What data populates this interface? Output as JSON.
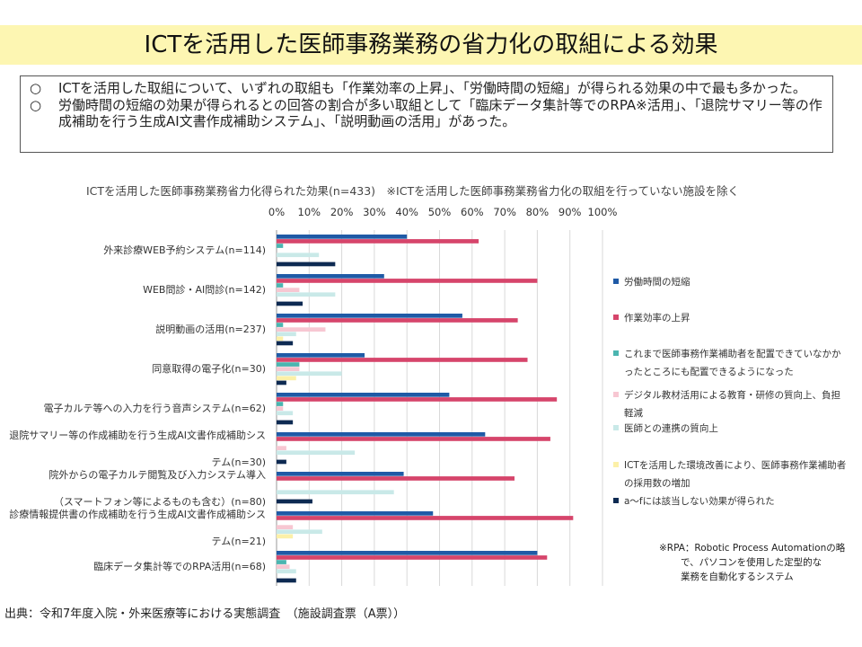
{
  "title": "ICTを活用した医師事務業務の省力化の取組による効果",
  "summary": [
    {
      "mark": "○",
      "text": "ICTを活用した取組について、いずれの取組も「作業効率の上昇」、「労働時間の短縮」が得られる効果の中で最も多かった。"
    },
    {
      "mark": "○",
      "text": "労働時間の短縮の効果が得られるとの回答の割合が多い取組として「臨床データ集計等でのRPA※活用」、「退院サマリー等の作成補助を行う生成AI文書作成補助システム」、「説明動画の活用」があった。"
    }
  ],
  "rpa_note": [
    "※RPA：Robotic Process Automationの略",
    "で、パソコンを使用した定型的な",
    "業務を自動化するシステム"
  ],
  "source": "出典：令和7年度入院・外来医療等における実態調査　（施設調査票（A票））",
  "chart_data": {
    "type": "bar",
    "orientation": "horizontal",
    "title": "ICTを活用した医師事務業務省力化得られた効果(n=433)　※ICTを活用した医師事務業務省力化の取組を行っていない施設を除く",
    "xlim": [
      0,
      100
    ],
    "xticks": [
      "0%",
      "10%",
      "20%",
      "30%",
      "40%",
      "50%",
      "60%",
      "70%",
      "80%",
      "90%",
      "100%"
    ],
    "grid": true,
    "legend_position": "right",
    "categories": [
      [
        "外来診療WEB予約システム(n=114)"
      ],
      [
        "WEB問診・AI問診(n=142)"
      ],
      [
        "説明動画の活用(n=237)"
      ],
      [
        "同意取得の電子化(n=30)"
      ],
      [
        "電子カルテ等への入力を行う音声システム(n=62)"
      ],
      [
        "退院サマリー等の作成補助を行う生成AI文書作成補助シス",
        "テム(n=30)"
      ],
      [
        "院外からの電子カルテ閲覧及び入力システム導入",
        "（スマートフォン等によるものも含む）(n=80)"
      ],
      [
        "診療情報提供書の作成補助を行う生成AI文書作成補助シス",
        "テム(n=21)"
      ],
      [
        "臨床データ集計等でのRPA活用(n=68)"
      ]
    ],
    "series": [
      {
        "name": "労働時間の短縮",
        "color": "#1f5aa6",
        "values": [
          40,
          33,
          57,
          27,
          53,
          64,
          39,
          48,
          80
        ]
      },
      {
        "name": "作業効率の上昇",
        "color": "#d6456b",
        "values": [
          62,
          80,
          74,
          77,
          86,
          84,
          73,
          91,
          83
        ]
      },
      {
        "name": "これまで医師事務作業補助者を配置できていなかったところにも配置できるようになった",
        "color": "#4bb5b0",
        "values": [
          2,
          2,
          2,
          7,
          2,
          0,
          0,
          0,
          3
        ]
      },
      {
        "name": "デジタル教材活用による教育・研修の質向上、負担軽減",
        "color": "#f7c7d2",
        "values": [
          0,
          7,
          15,
          7,
          2,
          3,
          0,
          5,
          4
        ]
      },
      {
        "name": "医師との連携の質向上",
        "color": "#c9e9e8",
        "values": [
          13,
          18,
          6,
          20,
          5,
          24,
          36,
          14,
          6
        ]
      },
      {
        "name": "ICTを活用した環境改善により、医師事務作業補助者の採用数の増加",
        "color": "#fcf0a8",
        "values": [
          0,
          0,
          2,
          6,
          0,
          0,
          0,
          5,
          0
        ]
      },
      {
        "name": "a～fには該当しない効果が得られた",
        "color": "#0d2a52",
        "values": [
          18,
          8,
          5,
          3,
          5,
          3,
          11,
          0,
          6
        ]
      }
    ]
  },
  "legend_lines": [
    [
      "労働時間の短縮"
    ],
    [
      "作業効率の上昇"
    ],
    [
      "これまで医師事務作業補助者を配置できていなかか",
      "ったところにも配置できるようになった"
    ],
    [
      "デジタル教材活用による教育・研修の質向上、負担",
      "軽減"
    ],
    [
      "医師との連携の質向上"
    ],
    [
      "ICTを活用した環境改善により、医師事務作業補助者",
      "の採用数の増加"
    ],
    [
      "a～fには該当しない効果が得られた"
    ]
  ]
}
